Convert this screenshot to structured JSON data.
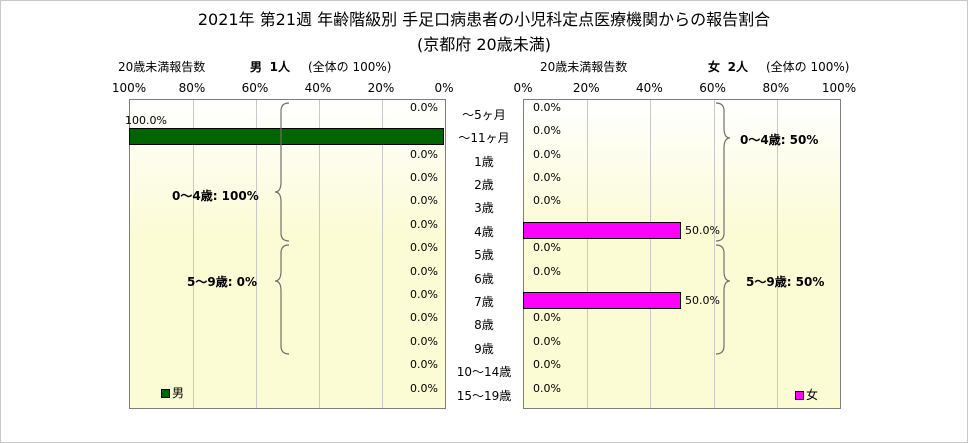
{
  "title": "2021年 第21週 年齢階級別 手足口病患者の小児科定点医療機関からの報告割合",
  "subtitle": "(京都府 20歳未満)",
  "left_header": {
    "axis_title": "20歳未満報告数",
    "sex": "男",
    "count": "1人",
    "note": "(全体の 100%)"
  },
  "right_header": {
    "axis_title": "20歳未満報告数",
    "sex": "女",
    "count": "2人",
    "note": "(全体の 100%)"
  },
  "left_ticks": [
    "100%",
    "80%",
    "60%",
    "40%",
    "20%",
    "0%"
  ],
  "right_ticks": [
    "0%",
    "20%",
    "40%",
    "60%",
    "80%",
    "100%"
  ],
  "legend": {
    "male": "男",
    "female": "女"
  },
  "annotations": {
    "male_0_4": "0～4歳: 100%",
    "male_5_9": "5～9歳: 0%",
    "female_0_4": "0～4歳: 50%",
    "female_5_9": "5～9歳: 50%"
  },
  "colors": {
    "male": "#006400",
    "female": "#ff00ff",
    "grid": "#c8c8c8"
  },
  "chart_data": {
    "type": "bar",
    "orientation": "horizontal",
    "categories": [
      "～5ヶ月",
      "～11ヶ月",
      "1歳",
      "2歳",
      "3歳",
      "4歳",
      "5歳",
      "6歳",
      "7歳",
      "8歳",
      "9歳",
      "10～14歳",
      "15～19歳"
    ],
    "series": [
      {
        "name": "男",
        "values": [
          0.0,
          100.0,
          0.0,
          0.0,
          0.0,
          0.0,
          0.0,
          0.0,
          0.0,
          0.0,
          0.0,
          0.0,
          0.0
        ],
        "labels": [
          "0.0%",
          "100.0%",
          "0.0%",
          "0.0%",
          "0.0%",
          "0.0%",
          "0.0%",
          "0.0%",
          "0.0%",
          "0.0%",
          "0.0%",
          "0.0%",
          "0.0%"
        ]
      },
      {
        "name": "女",
        "values": [
          0.0,
          0.0,
          0.0,
          0.0,
          0.0,
          50.0,
          0.0,
          0.0,
          50.0,
          0.0,
          0.0,
          0.0,
          0.0
        ],
        "labels": [
          "0.0%",
          "0.0%",
          "0.0%",
          "0.0%",
          "0.0%",
          "50.0%",
          "0.0%",
          "0.0%",
          "50.0%",
          "0.0%",
          "0.0%",
          "0.0%",
          "0.0%"
        ]
      }
    ],
    "xlim": [
      0,
      100
    ],
    "grid": true,
    "legend_position": "bottom-left / bottom-right"
  }
}
